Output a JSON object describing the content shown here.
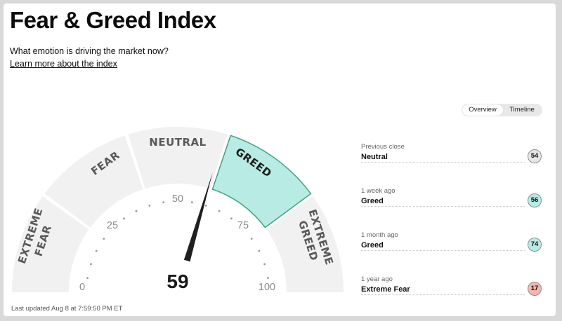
{
  "title": "Fear & Greed Index",
  "subtitle": "What emotion is driving the market now?",
  "learn_more": "Learn more about the index",
  "toggle": {
    "overview": "Overview",
    "timeline": "Timeline",
    "selected": "Overview"
  },
  "gauge": {
    "value": 59,
    "value_text": "59",
    "segments": {
      "extreme_fear": [
        "EXTREME",
        "FEAR"
      ],
      "fear": "FEAR",
      "neutral": "NEUTRAL",
      "greed": "GREED",
      "extreme_greed": [
        "EXTREME",
        "GREED"
      ]
    },
    "active_segment": "greed",
    "tick_labels": {
      "t0": "0",
      "t25": "25",
      "t50": "50",
      "t75": "75",
      "t100": "100"
    }
  },
  "last_updated": "Last updated Aug 8 at 7:59:50 PM ET",
  "history": [
    {
      "period": "Previous close",
      "rating": "Neutral",
      "value": "54"
    },
    {
      "period": "1 week ago",
      "rating": "Greed",
      "value": "56"
    },
    {
      "period": "1 month ago",
      "rating": "Greed",
      "value": "74"
    },
    {
      "period": "1 year ago",
      "rating": "Extreme Fear",
      "value": "17"
    }
  ],
  "colors": {
    "segment_fill": "#f1f1f1",
    "active_fill": "#b8ebe3",
    "active_stroke": "#3ca381",
    "badge_neutral": "#e6e6e6",
    "badge_greed": "#b8ebe3",
    "badge_extreme_fear": "#f7b4ac",
    "needle": "#1f1f1f"
  }
}
